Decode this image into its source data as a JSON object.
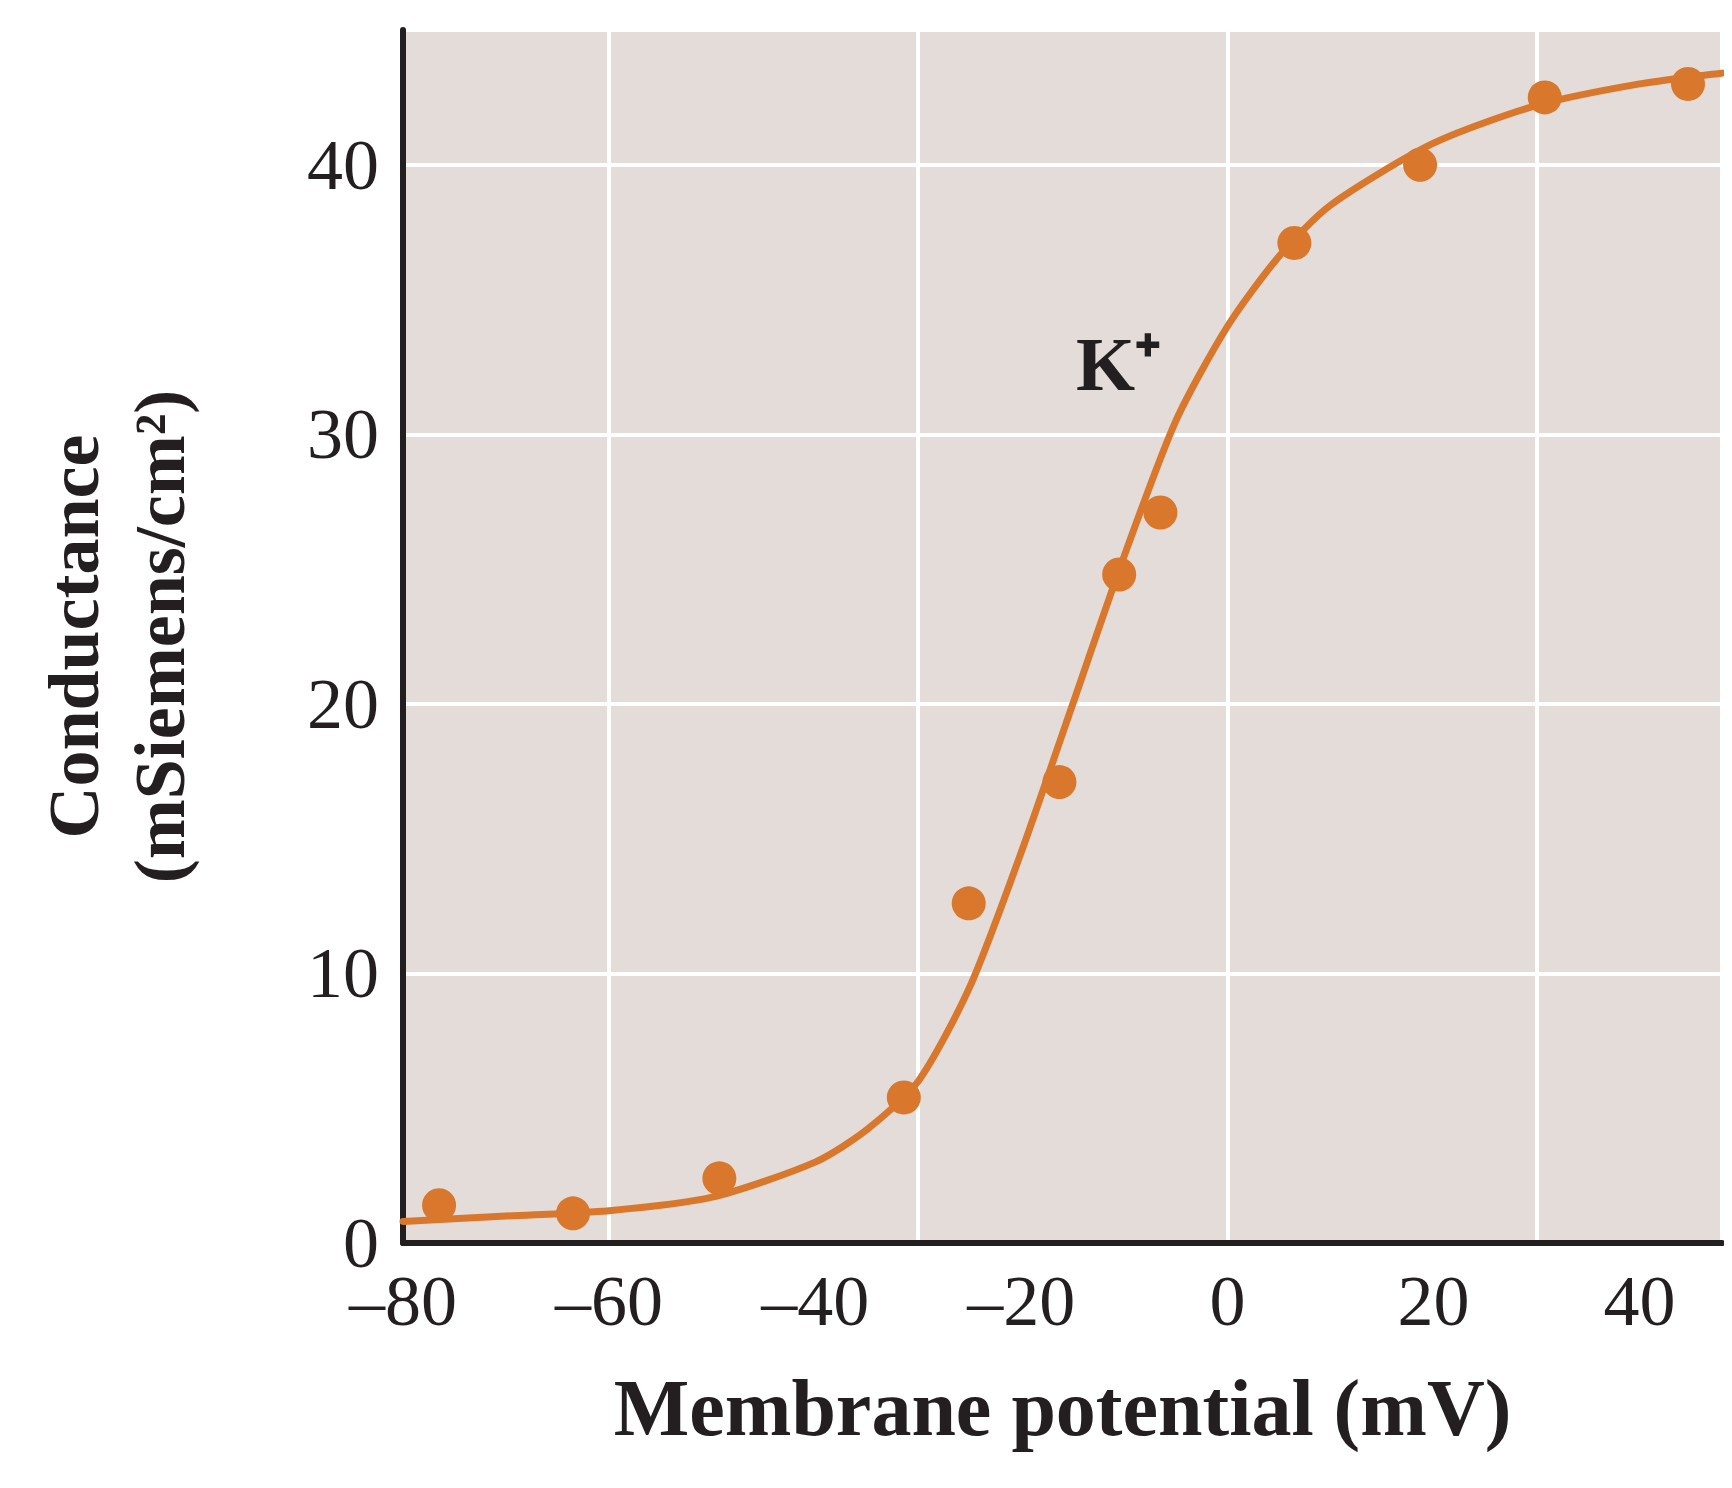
{
  "chart_data": {
    "type": "scatter",
    "xlabel": "Membrane potential (mV)",
    "ylabel": "Conductance\n(mSiemens/cm²)",
    "xlim": [
      -80,
      48
    ],
    "ylim": [
      0,
      45
    ],
    "xticks": [
      {
        "value": -80,
        "label": "–80"
      },
      {
        "value": -60,
        "label": "–60"
      },
      {
        "value": -40,
        "label": "–40"
      },
      {
        "value": -20,
        "label": "–20"
      },
      0,
      20,
      40
    ],
    "yticks": [
      0,
      10,
      20,
      30,
      40
    ],
    "grid": true,
    "annotations": [
      "K⁺"
    ],
    "series": [
      {
        "type": "line",
        "color": "#d9782d",
        "marker": "none",
        "line_style": "solid",
        "x": [
          -80,
          -70,
          -60,
          -50,
          -40,
          -35,
          -30,
          -25,
          -20,
          -15,
          -10,
          -5,
          0,
          5,
          10,
          20,
          30,
          40,
          48
        ],
        "values": [
          0.8,
          1.0,
          1.2,
          1.7,
          3,
          4.2,
          6,
          9.5,
          14.5,
          20,
          25.5,
          30.5,
          34,
          36.6,
          38.5,
          40.8,
          42.2,
          43,
          43.4
        ]
      },
      {
        "color": "#d9782d",
        "marker": "circle",
        "x": [
          -76.5,
          -63.5,
          -49.3,
          -31.4,
          -25.1,
          -16.3,
          -10.5,
          -6.5,
          6.5,
          18.7,
          30.8,
          44.7
        ],
        "values": [
          1.4,
          1.1,
          2.4,
          5.4,
          12.6,
          17.1,
          24.8,
          27.1,
          37.1,
          40,
          42.5,
          43
        ]
      }
    ]
  }
}
